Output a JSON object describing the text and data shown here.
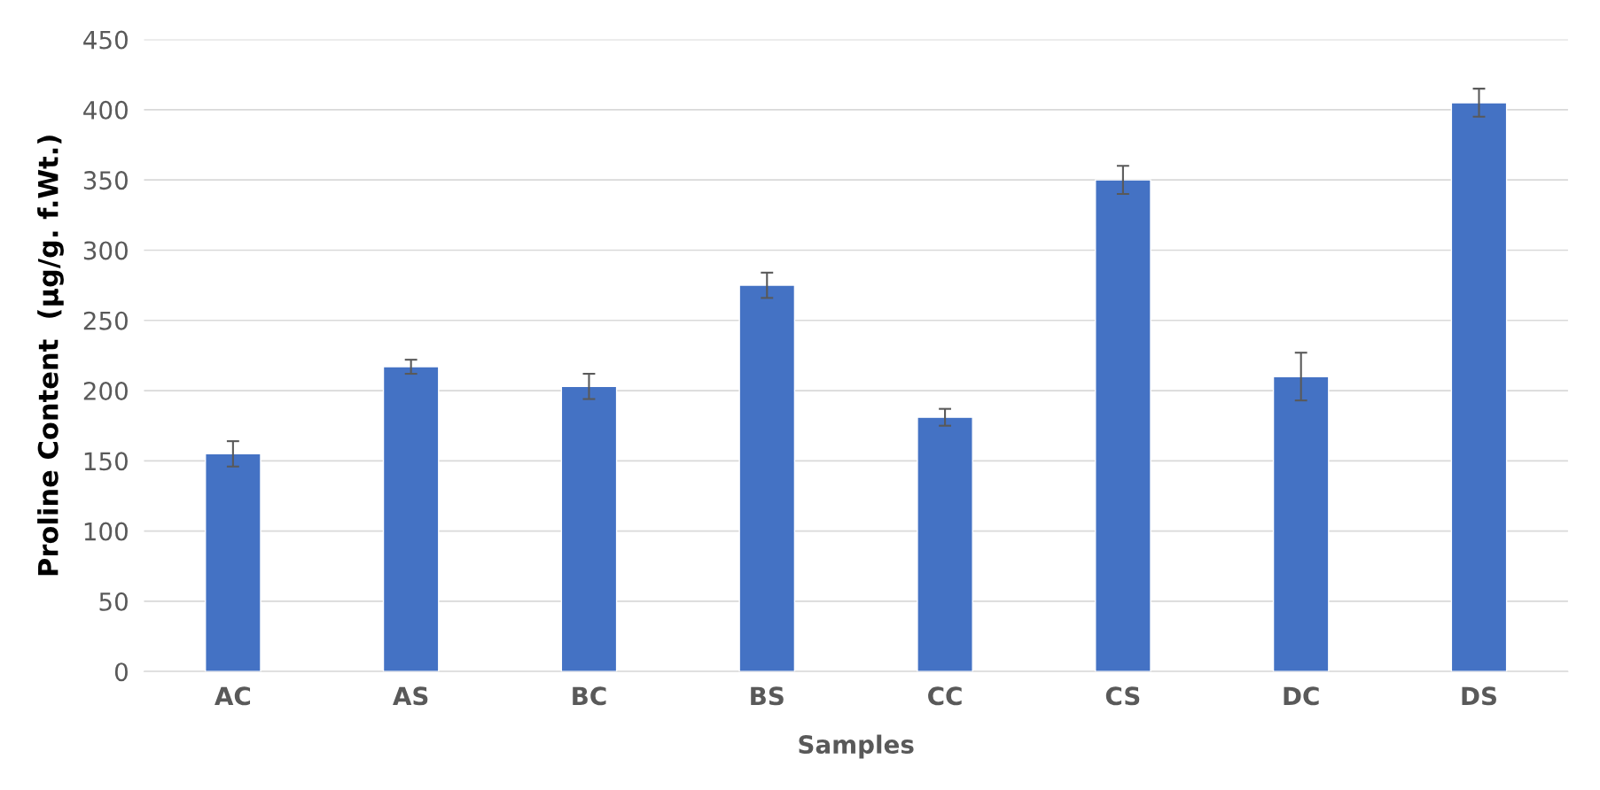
{
  "chart_data": {
    "type": "bar",
    "xlabel": "Samples",
    "ylabel": "Proline Content  (µg/g. f.Wt.)",
    "categories": [
      "AC",
      "AS",
      "BC",
      "BS",
      "CC",
      "CS",
      "DC",
      "DS"
    ],
    "values": [
      155,
      217,
      203,
      275,
      181,
      350,
      210,
      405
    ],
    "errors": [
      9,
      5,
      9,
      9,
      6,
      10,
      17,
      10
    ],
    "color": "#4472c4",
    "ylim": [
      0,
      450
    ],
    "yticks": [
      0,
      50,
      100,
      150,
      200,
      250,
      300,
      350,
      400,
      450
    ],
    "grid": "y"
  }
}
